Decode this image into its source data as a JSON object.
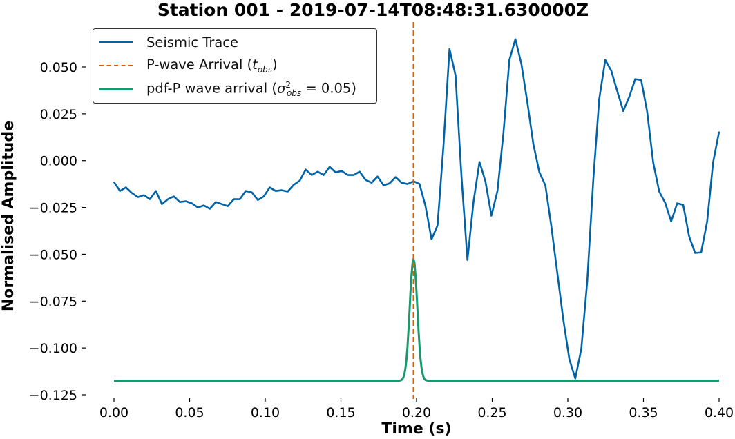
{
  "chart_data": {
    "type": "line",
    "title": "Station 001 - 2019-07-14T08:48:31.630000Z",
    "xlabel": "Time (s)",
    "ylabel": "Normalised Amplitude",
    "xlim": [
      0.0,
      0.4
    ],
    "ylim": [
      -0.127,
      0.063
    ],
    "xticks": [
      0.0,
      0.05,
      0.1,
      0.15,
      0.2,
      0.25,
      0.3,
      0.35,
      0.4
    ],
    "xtick_labels": [
      "0.00",
      "0.05",
      "0.10",
      "0.15",
      "0.20",
      "0.25",
      "0.30",
      "0.35",
      "0.40"
    ],
    "yticks": [
      0.05,
      0.025,
      0.0,
      -0.025,
      -0.05,
      -0.075,
      -0.1,
      -0.125
    ],
    "ytick_labels": [
      "0.050",
      "0.025",
      "0.000",
      "−0.025",
      "−0.050",
      "−0.075",
      "−0.100",
      "−0.125"
    ],
    "grid": false,
    "legend_position": "upper left",
    "series": [
      {
        "name": "Seismic Trace",
        "style": "solid",
        "color": "#0063a8",
        "x_step": 0.003333,
        "values": [
          -0.0114,
          -0.0162,
          -0.0143,
          -0.0173,
          -0.0195,
          -0.0184,
          -0.0206,
          -0.0162,
          -0.0232,
          -0.0206,
          -0.0191,
          -0.0221,
          -0.0217,
          -0.0228,
          -0.025,
          -0.0239,
          -0.0257,
          -0.0221,
          -0.0232,
          -0.0243,
          -0.0206,
          -0.0206,
          -0.0162,
          -0.0169,
          -0.021,
          -0.0191,
          -0.0143,
          -0.0162,
          -0.0158,
          -0.0165,
          -0.0129,
          -0.0107,
          -0.0048,
          -0.0077,
          -0.0059,
          -0.0077,
          -0.0033,
          -0.0063,
          -0.0055,
          -0.0077,
          -0.0077,
          -0.0059,
          -0.0103,
          -0.0118,
          -0.0085,
          -0.0132,
          -0.0121,
          -0.0088,
          -0.0118,
          -0.0125,
          -0.011,
          -0.0125,
          -0.0243,
          -0.042,
          -0.0346,
          0.008,
          0.0596,
          0.0456,
          -0.0081,
          -0.053,
          -0.0221,
          -0.0007,
          -0.011,
          -0.0294,
          -0.0162,
          0.0147,
          0.0538,
          0.0648,
          0.0516,
          0.0309,
          0.0088,
          -0.0062,
          -0.0132,
          -0.035,
          -0.06,
          -0.085,
          -0.106,
          -0.1163,
          -0.1005,
          -0.064,
          -0.01,
          0.033,
          0.0538,
          0.048,
          0.037,
          0.0265,
          0.034,
          0.0435,
          0.043,
          0.026,
          -0.001,
          -0.0165,
          -0.0225,
          -0.0325,
          -0.0228,
          -0.0236,
          -0.0405,
          -0.0493,
          -0.049,
          -0.0325,
          -0.001,
          0.0155
        ],
        "note": "approximate values read from plot; trace spans t=0.00 to t=0.40 s"
      },
      {
        "name": "P-wave Arrival (t_obs)",
        "style": "dashed",
        "color": "#d95f02",
        "x": 0.198,
        "type": "vline"
      },
      {
        "name": "pdf-P wave arrival (σ²_obs = 0.05)",
        "style": "solid",
        "color": "#1a9a6c",
        "baseline": -0.1175,
        "peak_x": 0.198,
        "peak_y": -0.0525,
        "sigma_s": 0.0025,
        "type": "gaussian"
      }
    ]
  },
  "legend": {
    "items": [
      {
        "label": "Seismic Trace",
        "color": "#0063a8",
        "style": "solid"
      },
      {
        "label_prefix": "P-wave Arrival (",
        "label_math": "t",
        "label_sub": "obs",
        "label_suffix": ")",
        "color": "#d95f02",
        "style": "dashed"
      },
      {
        "label_prefix": "pdf-P wave arrival (",
        "label_math": "σ",
        "label_sup": "2",
        "label_sub": "obs",
        "label_eq": " = 0.05)",
        "color": "#1a9a6c",
        "style": "solid"
      }
    ]
  },
  "colors": {
    "trace": "#0063a8",
    "arrival": "#d95f02",
    "pdf": "#1a9a6c",
    "text": "#000000"
  }
}
